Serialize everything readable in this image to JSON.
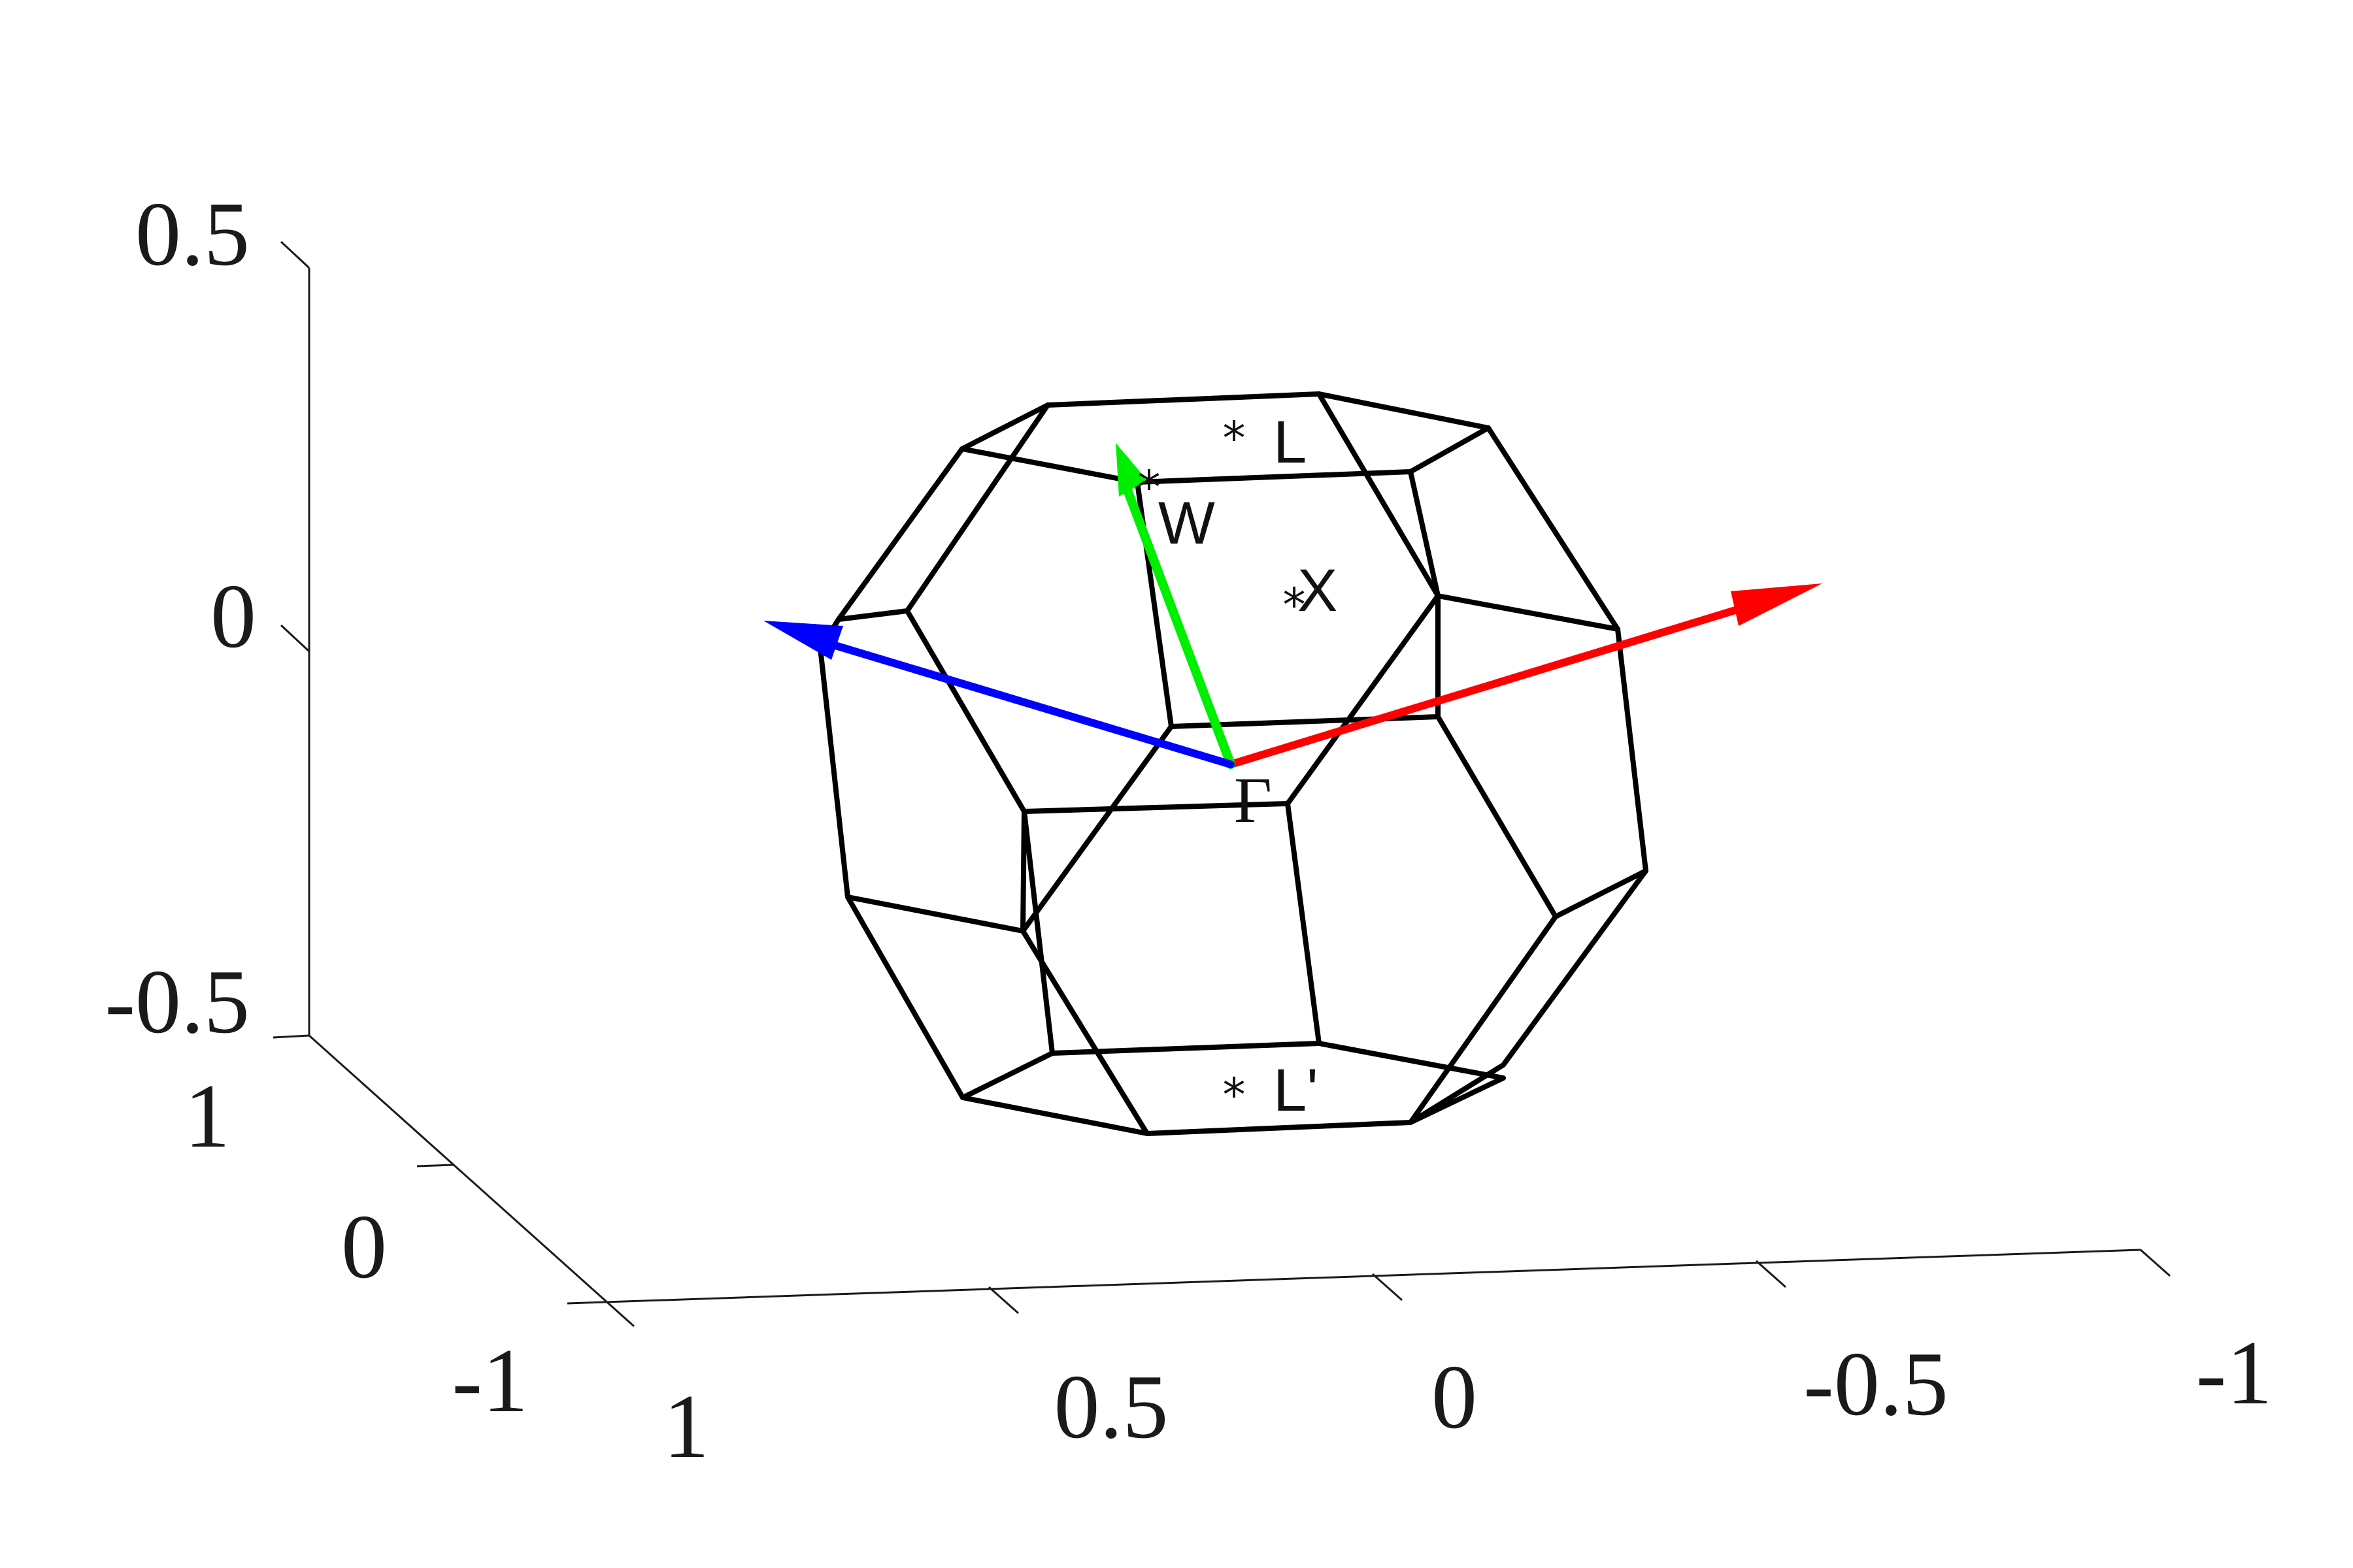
{
  "axes": {
    "vertical_ticks": [
      "0.5",
      "0",
      "-0.5"
    ],
    "depth_ticks": [
      "1",
      "0",
      "-1"
    ],
    "horizontal_ticks": [
      "1",
      "0.5",
      "0",
      "-0.5",
      "-1"
    ]
  },
  "points": {
    "L": "L",
    "W": "W",
    "X": "X",
    "Gamma": "Γ",
    "L_prime": "L'"
  },
  "vectors": {
    "red": {
      "color": "#ff0000"
    },
    "green": {
      "color": "#00ee00"
    },
    "blue": {
      "color": "#0000ff"
    }
  },
  "colors": {
    "edges": "#000000",
    "axes": "#1a1a1a"
  }
}
